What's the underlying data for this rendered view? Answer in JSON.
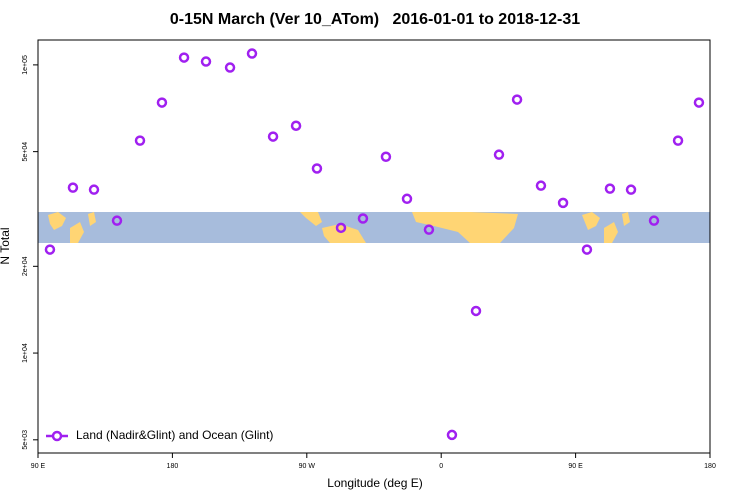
{
  "chart_data": {
    "type": "scatter",
    "title": "0-15N March (Ver 10_ATom)   2016-01-01 to 2018-12-31",
    "x_label": "Longitude (deg E)",
    "y_label": "N Total",
    "log_y": true,
    "legend": "bottom-left",
    "xlim": [
      90,
      540
    ],
    "ylim": [
      4500,
      122000
    ],
    "xticks": [
      {
        "value": 90,
        "label": "90 E"
      },
      {
        "value": 180,
        "label": "180"
      },
      {
        "value": 270,
        "label": "90 W"
      },
      {
        "value": 360,
        "label": "0"
      },
      {
        "value": 450,
        "label": "90 E"
      },
      {
        "value": 540,
        "label": "180"
      }
    ],
    "yticks": [
      {
        "value": 5000,
        "label": "5e+03"
      },
      {
        "value": 10000,
        "label": "1e+04"
      },
      {
        "value": 20000,
        "label": "2e+04"
      },
      {
        "value": 50000,
        "label": "5e+04"
      },
      {
        "value": 100000,
        "label": "1e+05"
      }
    ],
    "series": [
      {
        "name": "Land (Nadir&Glint) and Ocean (Glint)",
        "color": "#a020f0",
        "x": [
          98,
          113.4,
          127.5,
          142.9,
          158.3,
          173,
          187.8,
          202.5,
          218.6,
          233.3,
          247.4,
          262.8,
          276.8,
          292.9,
          307.6,
          323,
          337.1,
          351.8,
          367.2,
          383.3,
          398.7,
          410.8,
          426.8,
          441.6,
          457.6,
          473,
          487.1,
          502.5,
          518.6,
          532.6
        ],
        "values": [
          22860,
          37500,
          36900,
          28800,
          54600,
          74000,
          106000,
          102700,
          97900,
          109500,
          56400,
          61500,
          43700,
          27200,
          29300,
          48000,
          34300,
          26800,
          5200,
          14000,
          48800,
          75800,
          38100,
          33200,
          22860,
          37200,
          36900,
          28800,
          54600,
          74000
        ]
      }
    ]
  }
}
